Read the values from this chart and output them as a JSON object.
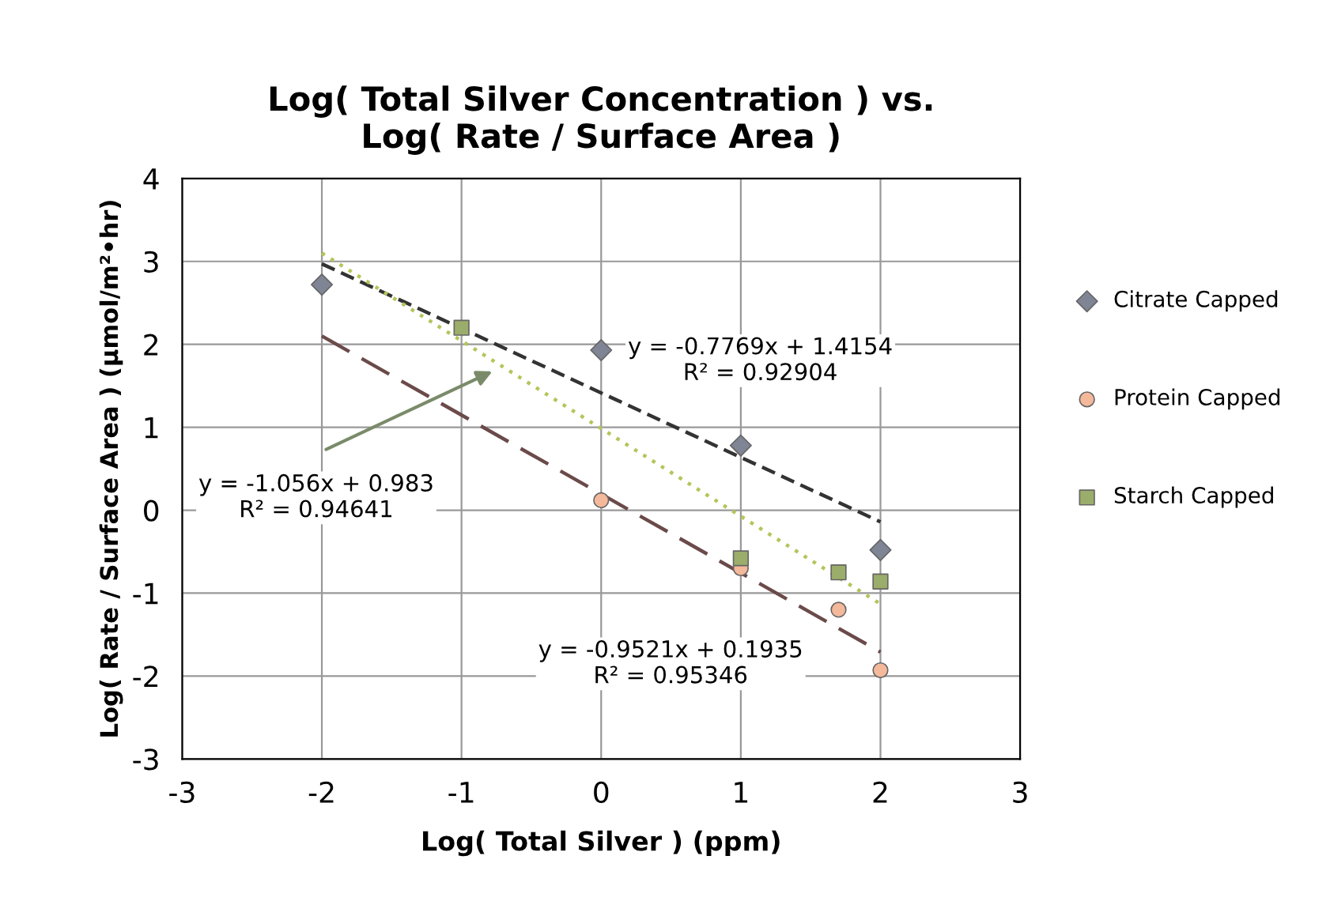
{
  "chart_data": {
    "type": "scatter",
    "title": "Log( Total Silver Concentration ) vs.\nLog( Rate / Surface Area )",
    "xlabel": "Log( Total Silver ) (ppm)",
    "ylabel": "Log( Rate / Surface Area ) (µmol/m²•hr)",
    "xlim": [
      -3,
      3
    ],
    "xticks": [
      -3,
      -2,
      -1,
      0,
      1,
      2,
      3
    ],
    "ylim": [
      -3,
      4
    ],
    "yticks": [
      -3,
      -2,
      -1,
      0,
      1,
      2,
      3,
      4
    ],
    "grid": true,
    "legend": "right",
    "series": [
      {
        "name": "Citrate Capped",
        "marker": "diamond",
        "color": "#7f8594",
        "x": [
          -2,
          0,
          1,
          2
        ],
        "values": [
          2.72,
          1.93,
          0.78,
          -0.48
        ]
      },
      {
        "name": "Protein Capped",
        "marker": "circle",
        "color": "#f4b89a",
        "x": [
          0,
          1,
          1.7,
          2
        ],
        "values": [
          0.12,
          -0.7,
          -1.2,
          -1.93
        ]
      },
      {
        "name": "Starch Capped",
        "marker": "square",
        "color": "#9bad6a",
        "x": [
          -1,
          1,
          1.7,
          2
        ],
        "values": [
          2.2,
          -0.58,
          -0.75,
          -0.86
        ]
      },
      {
        "type": "line",
        "line_style": "dashed",
        "color": "#333333",
        "x": [
          -2,
          2
        ],
        "values": [
          2.97,
          -0.14
        ]
      },
      {
        "type": "line",
        "line_style": "longdash",
        "color": "#6b4a4a",
        "x": [
          -2,
          2
        ],
        "values": [
          2.1,
          -1.71
        ]
      },
      {
        "type": "line",
        "line_style": "dotted",
        "color": "#b5c45a",
        "x": [
          -2,
          2
        ],
        "values": [
          3.1,
          -1.13
        ]
      }
    ],
    "annotations": [
      "y = -0.7769x + 1.4154\nR² = 0.92904",
      "y = -0.9521x + 0.1935\nR² = 0.95346",
      "y = -1.056x + 0.983\nR² = 0.94641"
    ]
  }
}
